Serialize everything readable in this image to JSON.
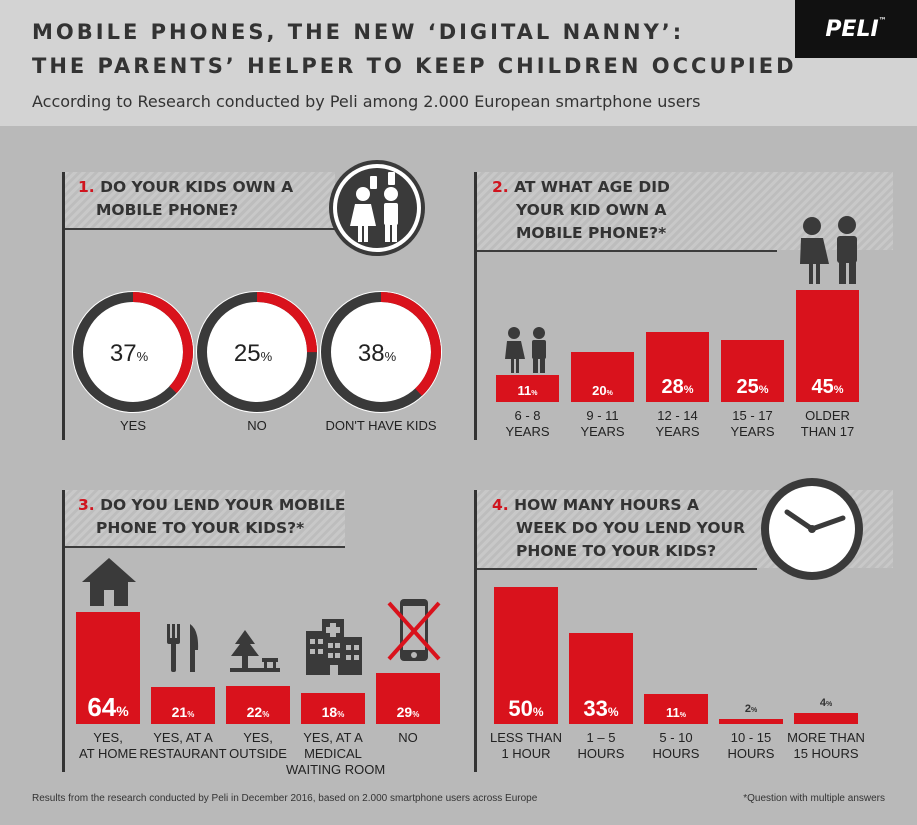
{
  "header": {
    "title_line1": "MOBILE PHONES, THE NEW ‘DIGITAL NANNY’:",
    "title_line2": "THE PARENTS’ HELPER TO KEEP CHILDREN OCCUPIED",
    "subtitle": "According to Research conducted by Peli among 2.000 European smartphone users",
    "logo": "PELI",
    "logo_tm": "™"
  },
  "colors": {
    "accent": "#d9121c",
    "dark": "#3a3a3a",
    "background": "#b9b9b9"
  },
  "q1": {
    "number": "1.",
    "line1": "DO YOUR KIDS OWN A",
    "line2": "MOBILE PHONE?",
    "icon": "kids-with-phones-icon"
  },
  "q2": {
    "number": "2.",
    "line1": "AT WHAT AGE DID",
    "line2": "YOUR KID OWN A",
    "line3": "MOBILE PHONE?*",
    "icon": "kids-icon"
  },
  "q3": {
    "number": "3.",
    "line1": "DO YOU LEND YOUR MOBILE",
    "line2": "PHONE TO YOUR KIDS?*",
    "icons": [
      "house-icon",
      "fork-knife-icon",
      "tree-bench-icon",
      "hospital-icon",
      "crossed-phone-icon"
    ]
  },
  "q4": {
    "number": "4.",
    "line1": "HOW MANY HOURS A",
    "line2": "WEEK DO YOU LEND YOUR",
    "line3": "PHONE TO YOUR KIDS?",
    "icon": "clock-icon"
  },
  "chart_data": [
    {
      "type": "pie",
      "title": "DO YOUR KIDS OWN A MOBILE PHONE?",
      "categories": [
        "YES",
        "NO",
        "DON'T HAVE KIDS"
      ],
      "values": [
        37,
        25,
        38
      ],
      "labels": [
        "37",
        "25",
        "38"
      ],
      "unit": "%"
    },
    {
      "type": "bar",
      "title": "AT WHAT AGE DID YOUR KID OWN A MOBILE PHONE?*",
      "categories": [
        [
          "6 - 8",
          "YEARS"
        ],
        [
          "9 - 11",
          "YEARS"
        ],
        [
          "12 - 14",
          "YEARS"
        ],
        [
          "15 - 17",
          "YEARS"
        ],
        [
          "OLDER",
          "THAN 17"
        ]
      ],
      "values": [
        11,
        20,
        28,
        25,
        45
      ],
      "labels": [
        "11",
        "20",
        "28",
        "25",
        "45"
      ],
      "unit": "%"
    },
    {
      "type": "bar",
      "title": "DO YOU LEND YOUR MOBILE PHONE TO YOUR KIDS?*",
      "categories": [
        [
          "YES,",
          "AT HOME"
        ],
        [
          "YES, AT A",
          "RESTAURANT"
        ],
        [
          "YES,",
          "OUTSIDE"
        ],
        [
          "YES, AT A",
          "MEDICAL",
          "WAITING ROOM"
        ],
        [
          "NO"
        ]
      ],
      "values": [
        64,
        21,
        22,
        18,
        29
      ],
      "labels": [
        "64",
        "21",
        "22",
        "18",
        "29"
      ],
      "unit": "%"
    },
    {
      "type": "bar",
      "title": "HOW MANY HOURS A WEEK DO YOU LEND YOUR PHONE TO YOUR KIDS?",
      "categories": [
        [
          "LESS THAN",
          "1 HOUR"
        ],
        [
          "1 – 5",
          "HOURS"
        ],
        [
          "5 - 10",
          "HOURS"
        ],
        [
          "10 - 15",
          "HOURS"
        ],
        [
          "MORE THAN",
          "15 HOURS"
        ]
      ],
      "values": [
        50,
        33,
        11,
        2,
        4
      ],
      "labels": [
        "50",
        "33",
        "11",
        "2",
        "4"
      ],
      "unit": "%"
    }
  ],
  "footer": {
    "source": "Results from the research conducted by Peli in December 2016, based on 2.000 smartphone users across Europe",
    "note": "*Question with multiple answers"
  }
}
